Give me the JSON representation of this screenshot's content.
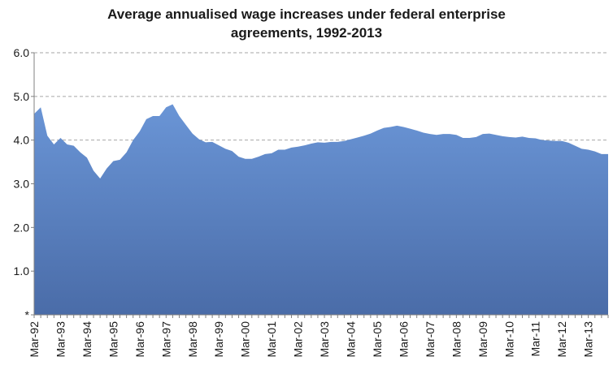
{
  "title_line1": "Average annualised wage increases under federal enterprise",
  "title_line2": "agreements, 1992-2013",
  "chart_data": {
    "type": "area",
    "title": "Average annualised wage increases under federal enterprise agreements, 1992-2013",
    "xlabel": "",
    "ylabel": "",
    "ylim": [
      0,
      6
    ],
    "yticks": [
      "*",
      "1.0",
      "2.0",
      "3.0",
      "4.0",
      "5.0",
      "6.0"
    ],
    "xticks": [
      "Mar-92",
      "Mar-93",
      "Mar-94",
      "Mar-95",
      "Mar-96",
      "Mar-97",
      "Mar-98",
      "Mar-99",
      "Mar-00",
      "Mar-01",
      "Mar-02",
      "Mar-03",
      "Mar-04",
      "Mar-05",
      "Mar-06",
      "Mar-07",
      "Mar-08",
      "Mar-09",
      "Mar-10",
      "Mar-11",
      "Mar-12",
      "Mar-13"
    ],
    "grid": true,
    "fill_color": "#5B85C6",
    "grid_color": "#a6a6a6",
    "series": [
      {
        "x": [
          "Mar-92",
          "Jun-92",
          "Sep-92",
          "Dec-92",
          "Mar-93",
          "Jun-93",
          "Sep-93",
          "Dec-93",
          "Mar-94",
          "Jun-94",
          "Sep-94",
          "Dec-94",
          "Mar-95",
          "Jun-95",
          "Sep-95",
          "Dec-95",
          "Mar-96",
          "Jun-96",
          "Sep-96",
          "Dec-96",
          "Mar-97",
          "Jun-97",
          "Sep-97",
          "Dec-97",
          "Mar-98",
          "Jun-98",
          "Sep-98",
          "Dec-98",
          "Mar-99",
          "Jun-99",
          "Sep-99",
          "Dec-99",
          "Mar-00",
          "Jun-00",
          "Sep-00",
          "Dec-00",
          "Mar-01",
          "Jun-01",
          "Sep-01",
          "Dec-01",
          "Mar-02",
          "Jun-02",
          "Sep-02",
          "Dec-02",
          "Mar-03",
          "Jun-03",
          "Sep-03",
          "Dec-03",
          "Mar-04",
          "Jun-04",
          "Sep-04",
          "Dec-04",
          "Mar-05",
          "Jun-05",
          "Sep-05",
          "Dec-05",
          "Mar-06",
          "Jun-06",
          "Sep-06",
          "Dec-06",
          "Mar-07",
          "Jun-07",
          "Sep-07",
          "Dec-07",
          "Mar-08",
          "Jun-08",
          "Sep-08",
          "Dec-08",
          "Mar-09",
          "Jun-09",
          "Sep-09",
          "Dec-09",
          "Mar-10",
          "Jun-10",
          "Sep-10",
          "Dec-10",
          "Mar-11",
          "Jun-11",
          "Sep-11",
          "Dec-11",
          "Mar-12",
          "Jun-12",
          "Sep-12",
          "Dec-12",
          "Mar-13",
          "Jun-13",
          "Sep-13"
        ],
        "values": [
          4.6,
          4.75,
          4.1,
          3.9,
          4.05,
          3.9,
          3.87,
          3.72,
          3.6,
          3.3,
          3.12,
          3.35,
          3.52,
          3.55,
          3.72,
          4.0,
          4.2,
          4.48,
          4.55,
          4.55,
          4.75,
          4.82,
          4.55,
          4.35,
          4.15,
          4.02,
          3.95,
          3.96,
          3.88,
          3.8,
          3.75,
          3.62,
          3.57,
          3.57,
          3.62,
          3.68,
          3.7,
          3.78,
          3.78,
          3.83,
          3.85,
          3.88,
          3.92,
          3.95,
          3.94,
          3.96,
          3.96,
          3.98,
          4.02,
          4.06,
          4.1,
          4.15,
          4.22,
          4.28,
          4.3,
          4.33,
          4.3,
          4.26,
          4.22,
          4.17,
          4.14,
          4.12,
          4.14,
          4.14,
          4.12,
          4.05,
          4.05,
          4.07,
          4.14,
          4.15,
          4.12,
          4.09,
          4.07,
          4.06,
          4.08,
          4.05,
          4.04,
          4.0,
          3.99,
          3.98,
          3.98,
          3.94,
          3.87,
          3.8,
          3.78,
          3.74,
          3.68
        ]
      }
    ]
  }
}
